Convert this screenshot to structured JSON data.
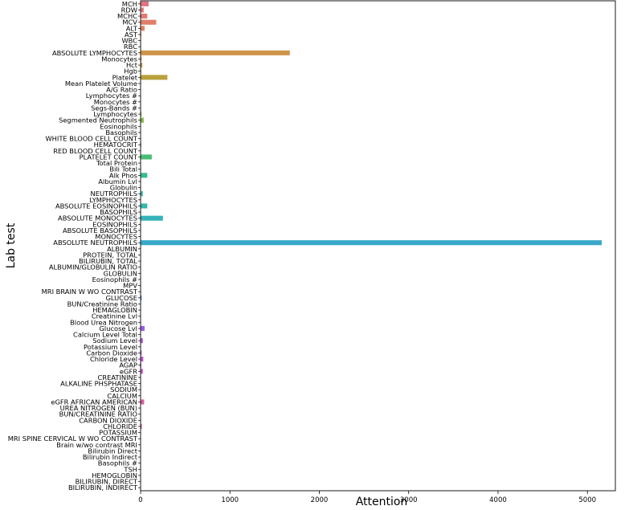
{
  "chart_data": {
    "type": "bar",
    "orientation": "horizontal",
    "xlabel": "Attention",
    "ylabel": "Lab test",
    "xlim": [
      0,
      5400
    ],
    "xticks": [
      0,
      1000,
      2000,
      3000,
      4000,
      5000
    ],
    "xtick_labels": [
      "0",
      "1000",
      "2000",
      "3000",
      "4000",
      "5000"
    ],
    "grid": false,
    "categories": [
      "MCH",
      "RDW",
      "MCHC",
      "MCV",
      "ALT",
      "AST",
      "WBC",
      "RBC",
      "ABSOLUTE LYMPHOCYTES",
      "Monocytes",
      "Hct",
      "Hgb",
      "Platelet",
      "Mean Platelet Volume",
      "A/G Ratio",
      "Lymphocytes #",
      "Monocytes #",
      "Segs-Bands #",
      "Lymphocytes",
      "Segmented Neutrophils",
      "Eosinophils",
      "Basophils",
      "WHITE BLOOD CELL COUNT",
      "HEMATOCRIT",
      "RED BLOOD CELL COUNT",
      "PLATELET COUNT",
      "Total Protein",
      "Bili Total",
      "Alk Phos",
      "Albumin Lvl",
      "Globulin",
      "NEUTROPHILS",
      "LYMPHOCYTES",
      "ABSOLUTE EOSINOPHILS",
      "BASOPHILS",
      "ABSOLUTE MONOCYTES",
      "EOSINOPHILS",
      "ABSOLUTE BASOPHILS",
      "MONOCYTES",
      "ABSOLUTE NEUTROPHILS",
      "ALBUMIN",
      "PROTEIN, TOTAL",
      "BILIRUBIN, TOTAL",
      "ALBUMIN/GLOBULIN RATIO",
      "GLOBULIN",
      "Eosinophils #",
      "MPV",
      "MRI BRAIN W WO CONTRAST",
      "GLUCOSE",
      "BUN/Creatinine Ratio",
      "HEMAGLOBIN",
      "Creatinine Lvl",
      "Blood Urea Nitrogen",
      "Glucose Lvl",
      "Calcium Level Total",
      "Sodium Level",
      "Potassium Level",
      "Carbon Dioxide",
      "Chloride Level",
      "AGAP",
      "eGFR",
      "CREATININE",
      "ALKALINE PHSPHATASE",
      "SODIUM",
      "CALCIUM",
      "eGFR AFRICAN AMERICAN",
      "UREA NITROGEN (BUN)",
      "BUN/CREATININE RATIO",
      "CARBON DIOXIDE",
      "CHLORIDE",
      "POTASSIUM",
      "MRI SPINE CERVICAL W WO CONTRAST",
      "Brain w/wo contrast MRI",
      "Bilirubin Direct",
      "Bilirubin Indirect",
      "Basophils #",
      "TSH",
      "HEMOGLOBIN",
      "BILIRUBIN, DIRECT",
      "BILIRUBIN, INDIRECT"
    ],
    "values": [
      90,
      35,
      75,
      175,
      45,
      8,
      5,
      5,
      1670,
      12,
      20,
      8,
      300,
      5,
      4,
      3,
      3,
      3,
      10,
      35,
      3,
      3,
      3,
      8,
      3,
      125,
      4,
      5,
      75,
      3,
      3,
      25,
      5,
      75,
      5,
      250,
      3,
      3,
      3,
      5160,
      3,
      3,
      3,
      3,
      3,
      3,
      5,
      5,
      12,
      5,
      3,
      3,
      3,
      45,
      3,
      25,
      3,
      12,
      30,
      8,
      25,
      3,
      5,
      3,
      3,
      40,
      3,
      3,
      5,
      15,
      3,
      3,
      3,
      3,
      3,
      3,
      3,
      3,
      3,
      3
    ],
    "colors": [
      "#e1747f",
      "#e1777a",
      "#e07b72",
      "#df7f6a",
      "#dd8462",
      "#da885b",
      "#d78c55",
      "#d3904f",
      "#cf944a",
      "#ca9846",
      "#c49b43",
      "#bf9e40",
      "#b9a13e",
      "#b3a43e",
      "#aca73e",
      "#a5aa3f",
      "#9ead41",
      "#96af44",
      "#8fb247",
      "#86b44c",
      "#7db651",
      "#73b857",
      "#69ba5e",
      "#5ebc65",
      "#52bd6d",
      "#47be75",
      "#3ebe7e",
      "#38be86",
      "#35bd8e",
      "#33bc95",
      "#32bb9c",
      "#32baa2",
      "#32b8a8",
      "#33b6ae",
      "#34b4b3",
      "#35b2b8",
      "#36b0bd",
      "#38adc1",
      "#39abc6",
      "#3aa8ca",
      "#3ca5ce",
      "#3ea2d3",
      "#409ed8",
      "#439add",
      "#4796e2",
      "#4c91e7",
      "#538beb",
      "#5c85ee",
      "#667ef0",
      "#7077f1",
      "#7b70f1",
      "#8669f0",
      "#9163ee",
      "#9b5deb",
      "#a458e7",
      "#ad55e2",
      "#b552dd",
      "#bc50d7",
      "#c34fd1",
      "#c94fca",
      "#ce50c3",
      "#d352bc",
      "#d754b4",
      "#da56ac",
      "#dd59a4",
      "#df5c9c",
      "#e15f94",
      "#e2628c",
      "#e36684",
      "#e36a7d",
      "#e36e76",
      "#e3726f",
      "#e37569",
      "#e37963",
      "#e27d5e",
      "#e18059",
      "#e08455",
      "#df8751",
      "#de8a4e",
      "#dd8d4b"
    ]
  }
}
